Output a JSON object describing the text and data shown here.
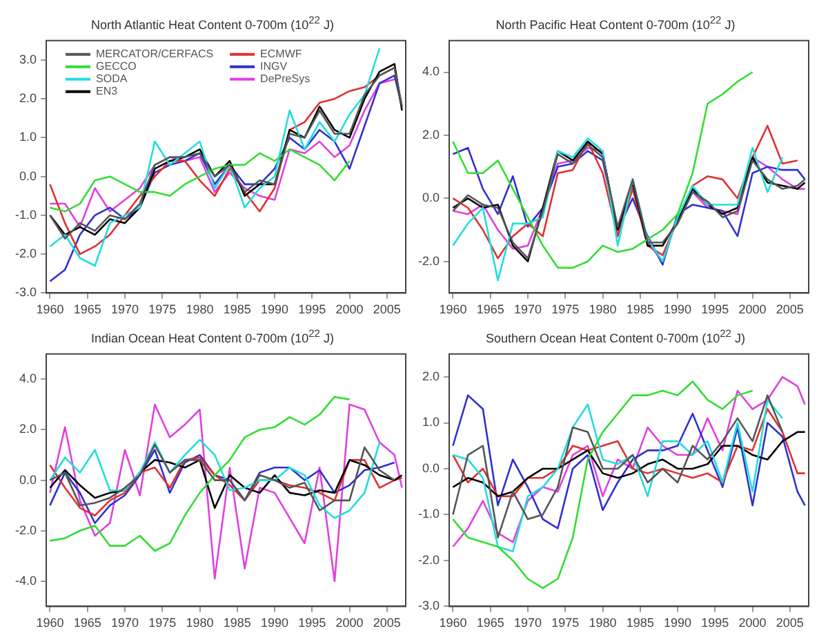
{
  "chart_data": [
    {
      "type": "line",
      "title": "North Atlantic Heat Content 0-700m (10$^{22}$ J)",
      "legend": "top left",
      "x": [
        1960,
        1962,
        1964,
        1966,
        1968,
        1970,
        1972,
        1974,
        1976,
        1978,
        1980,
        1982,
        1984,
        1986,
        1988,
        1990,
        1992,
        1994,
        1996,
        1998,
        2000,
        2002,
        2004,
        2006,
        2007
      ],
      "xlim": [
        1959.5,
        2007.5
      ],
      "xticks": [
        1960,
        1965,
        1970,
        1975,
        1980,
        1985,
        1990,
        1995,
        2000,
        2005
      ],
      "ylim": [
        -3,
        3.5
      ],
      "yticks": [
        {
          "value": -3,
          "label": "-3.0"
        },
        {
          "value": -2,
          "label": "-2.0"
        },
        {
          "value": -1,
          "label": "-1.0"
        },
        {
          "value": 0,
          "label": "0.0"
        },
        {
          "value": 1,
          "label": "1.0"
        },
        {
          "value": 2,
          "label": "2.0"
        },
        {
          "value": 3,
          "label": "3.0"
        }
      ],
      "series": [
        {
          "name": "MERCATOR/CERFACS",
          "color": "#555555",
          "values": [
            -1.0,
            -1.6,
            -1.2,
            -1.4,
            -1.0,
            -1.1,
            -0.7,
            0.3,
            0.5,
            0.5,
            0.6,
            0.0,
            0.3,
            -0.4,
            -0.1,
            -0.2,
            1.1,
            1.0,
            1.7,
            1.1,
            1.1,
            2.1,
            2.6,
            2.8,
            1.8
          ]
        },
        {
          "name": "GECCO",
          "color": "#33dd33",
          "values": [
            -0.8,
            -0.9,
            -0.7,
            -0.1,
            0.0,
            -0.2,
            -0.4,
            -0.4,
            -0.5,
            -0.2,
            0.0,
            0.2,
            0.3,
            0.3,
            0.6,
            0.4,
            0.7,
            0.5,
            0.3,
            -0.1,
            0.4,
            null,
            null,
            null,
            null
          ]
        },
        {
          "name": "SODA",
          "color": "#22dddd",
          "values": [
            -1.8,
            -1.5,
            -2.1,
            -2.3,
            -1.2,
            -1.0,
            -0.8,
            0.9,
            0.3,
            0.6,
            0.9,
            -0.3,
            0.3,
            -0.8,
            -0.3,
            0.0,
            1.7,
            0.7,
            1.4,
            0.9,
            1.6,
            2.1,
            3.3,
            null,
            null
          ]
        },
        {
          "name": "EN3",
          "color": "#000000",
          "values": [
            -1.0,
            -1.5,
            -1.3,
            -1.5,
            -1.1,
            -1.2,
            -0.8,
            0.2,
            0.4,
            0.5,
            0.7,
            0.0,
            0.4,
            -0.5,
            -0.2,
            -0.2,
            1.2,
            1.0,
            1.8,
            1.2,
            1.0,
            2.0,
            2.7,
            2.9,
            1.7
          ]
        },
        {
          "name": "ECMWF",
          "color": "#e03030",
          "values": [
            -0.2,
            -1.2,
            -2.0,
            -1.8,
            -1.5,
            -1.0,
            -0.5,
            0.0,
            0.4,
            0.4,
            -0.1,
            -0.5,
            0.2,
            -0.4,
            -0.9,
            -0.3,
            1.2,
            1.4,
            1.9,
            2.0,
            2.2,
            2.3,
            2.6,
            2.8,
            1.8
          ]
        },
        {
          "name": "INGV",
          "color": "#3030d0",
          "values": [
            -2.7,
            -2.4,
            -1.5,
            -1.0,
            -0.8,
            -1.1,
            -0.8,
            0.1,
            0.3,
            0.4,
            0.6,
            -0.2,
            0.3,
            -0.2,
            -0.2,
            0.2,
            1.0,
            0.7,
            1.2,
            0.9,
            0.2,
            1.3,
            2.4,
            2.6,
            1.8
          ]
        },
        {
          "name": "DePreSys",
          "color": "#e040e0",
          "values": [
            -0.7,
            -0.7,
            -1.3,
            -0.3,
            -0.9,
            -0.6,
            -0.3,
            0.3,
            0.5,
            0.4,
            0.5,
            -0.4,
            0.1,
            -0.3,
            -0.5,
            -0.6,
            0.7,
            0.6,
            0.9,
            0.5,
            0.8,
            1.7,
            2.4,
            2.5,
            null
          ]
        }
      ]
    },
    {
      "type": "line",
      "title": "North Pacific Heat Content 0-700m (10$^{22}$ J)",
      "x": [
        1960,
        1962,
        1964,
        1966,
        1968,
        1970,
        1972,
        1974,
        1976,
        1978,
        1980,
        1982,
        1984,
        1986,
        1988,
        1990,
        1992,
        1994,
        1996,
        1998,
        2000,
        2002,
        2004,
        2006,
        2007
      ],
      "xlim": [
        1959.5,
        2007.5
      ],
      "xticks": [
        1960,
        1965,
        1970,
        1975,
        1980,
        1985,
        1990,
        1995,
        2000,
        2005
      ],
      "ylim": [
        -3,
        5
      ],
      "yticks": [
        {
          "value": -2,
          "label": "-2.0"
        },
        {
          "value": 0,
          "label": "0.0"
        },
        {
          "value": 2,
          "label": "2.0"
        },
        {
          "value": 4,
          "label": "4.0"
        }
      ],
      "series": [
        {
          "color": "#555555",
          "values": [
            -0.4,
            0.1,
            -0.2,
            -0.3,
            -1.4,
            -1.9,
            -0.4,
            1.4,
            1.1,
            1.7,
            1.3,
            -0.9,
            0.6,
            -1.4,
            -1.4,
            -0.8,
            0.2,
            -0.1,
            -0.6,
            -0.4,
            1.2,
            0.6,
            0.3,
            0.4,
            0.6
          ]
        },
        {
          "color": "#33dd33",
          "values": [
            1.8,
            0.8,
            0.8,
            1.2,
            0.3,
            -0.6,
            -1.5,
            -2.2,
            -2.2,
            -2.0,
            -1.5,
            -1.7,
            -1.6,
            -1.3,
            -1.0,
            -0.5,
            0.8,
            3.0,
            3.3,
            3.7,
            4.0,
            null,
            null,
            null,
            null
          ]
        },
        {
          "color": "#22dddd",
          "values": [
            -1.5,
            -0.8,
            -0.3,
            -2.6,
            -0.8,
            -0.8,
            -0.6,
            1.5,
            1.3,
            1.9,
            1.5,
            -1.5,
            0.6,
            -1.3,
            -2.0,
            -0.6,
            0.4,
            -0.2,
            -0.2,
            -0.2,
            1.6,
            0.2,
            1.3,
            null,
            null
          ]
        },
        {
          "color": "#000000",
          "values": [
            -0.3,
            0.0,
            -0.3,
            -0.2,
            -1.5,
            -2.0,
            -0.3,
            1.5,
            1.2,
            1.8,
            1.4,
            -1.0,
            0.5,
            -1.5,
            -1.5,
            -0.7,
            0.3,
            -0.2,
            -0.5,
            -0.3,
            1.3,
            0.5,
            0.4,
            0.3,
            0.5
          ]
        },
        {
          "color": "#e03030",
          "values": [
            0.0,
            -0.3,
            -1.0,
            -1.9,
            -1.2,
            -0.8,
            -1.2,
            0.8,
            0.9,
            1.8,
            0.8,
            -1.2,
            0.3,
            -1.5,
            -1.8,
            -0.7,
            0.4,
            0.7,
            0.6,
            0.0,
            1.3,
            2.3,
            1.1,
            1.2,
            null
          ]
        },
        {
          "color": "#3030d0",
          "values": [
            1.4,
            1.6,
            0.3,
            -0.5,
            0.7,
            -0.9,
            -0.3,
            1.0,
            1.1,
            1.5,
            1.2,
            -1.0,
            0.0,
            -1.2,
            -2.1,
            -0.5,
            -0.2,
            -0.3,
            -0.4,
            -1.2,
            0.8,
            1.0,
            0.9,
            0.9,
            0.6
          ]
        },
        {
          "color": "#e040e0",
          "values": [
            -0.4,
            -0.5,
            -0.2,
            -1.0,
            -1.6,
            -1.5,
            -0.3,
            1.1,
            1.2,
            1.6,
            1.5,
            -1.2,
            0.4,
            -1.4,
            -2.0,
            -0.6,
            0.2,
            -0.3,
            -0.4,
            -0.5,
            1.3,
            1.0,
            0.6,
            0.3,
            0.3
          ]
        }
      ]
    },
    {
      "type": "line",
      "title": "Indian Ocean Heat Content 0-700m (10$^{22}$ J)",
      "x": [
        1960,
        1962,
        1964,
        1966,
        1968,
        1970,
        1972,
        1974,
        1976,
        1978,
        1980,
        1982,
        1984,
        1986,
        1988,
        1990,
        1992,
        1994,
        1996,
        1998,
        2000,
        2002,
        2004,
        2006,
        2007
      ],
      "xlim": [
        1959.5,
        2007.5
      ],
      "xticks": [
        1960,
        1965,
        1970,
        1975,
        1980,
        1985,
        1990,
        1995,
        2000,
        2005
      ],
      "ylim": [
        -5,
        5
      ],
      "yticks": [
        {
          "value": -4,
          "label": "-4.0"
        },
        {
          "value": -2,
          "label": "-2.0"
        },
        {
          "value": 0,
          "label": "0.0"
        },
        {
          "value": 2,
          "label": "2.0"
        },
        {
          "value": 4,
          "label": "4.0"
        }
      ],
      "series": [
        {
          "color": "#555555",
          "values": [
            0.0,
            0.3,
            -1.0,
            -0.9,
            -0.7,
            -0.3,
            0.2,
            1.4,
            0.3,
            0.8,
            0.8,
            0.0,
            0.0,
            -0.8,
            0.2,
            0.0,
            -0.3,
            -0.1,
            -1.2,
            -0.8,
            -0.8,
            1.3,
            0.4,
            0.0,
            null
          ]
        },
        {
          "color": "#33dd33",
          "values": [
            -2.4,
            -2.3,
            -2.0,
            -1.8,
            -2.6,
            -2.6,
            -2.2,
            -2.8,
            -2.5,
            -1.4,
            -0.5,
            0.2,
            0.8,
            1.7,
            2.0,
            2.1,
            2.5,
            2.2,
            2.6,
            3.3,
            3.2,
            null,
            null,
            null,
            null
          ]
        },
        {
          "color": "#22dddd",
          "values": [
            0.0,
            0.9,
            0.3,
            1.2,
            -0.4,
            -0.4,
            0.3,
            1.5,
            0.3,
            1.0,
            1.6,
            1.0,
            -0.4,
            -0.3,
            0.0,
            0.0,
            0.5,
            0.2,
            -1.0,
            -1.5,
            -1.2,
            -0.5,
            1.5,
            null,
            null
          ]
        },
        {
          "color": "#000000",
          "values": [
            -0.3,
            0.4,
            -0.2,
            -0.7,
            -0.5,
            -0.4,
            0.3,
            0.8,
            0.7,
            0.5,
            0.8,
            -1.1,
            0.2,
            -0.3,
            -0.5,
            0.2,
            -0.5,
            -0.6,
            -0.4,
            -0.5,
            0.8,
            0.6,
            0.2,
            0.0,
            0.2
          ]
        },
        {
          "color": "#e03030",
          "values": [
            0.6,
            -0.3,
            -1.1,
            -1.4,
            -0.8,
            -0.5,
            0.3,
            0.5,
            -0.3,
            0.8,
            0.9,
            0.2,
            -0.2,
            -0.8,
            0.0,
            0.0,
            -0.2,
            -0.3,
            -0.5,
            -0.8,
            0.8,
            0.8,
            -0.3,
            0.0,
            0.1
          ]
        },
        {
          "color": "#3030d0",
          "values": [
            -1.0,
            0.3,
            -0.5,
            -1.7,
            -1.0,
            -0.6,
            0.2,
            1.2,
            -0.5,
            0.7,
            1.0,
            0.2,
            0.0,
            -0.8,
            0.3,
            0.5,
            0.5,
            0.0,
            0.4,
            -0.5,
            -0.2,
            0.4,
            0.5,
            0.7,
            null
          ]
        },
        {
          "color": "#e040e0",
          "values": [
            -0.5,
            2.1,
            -0.8,
            -2.2,
            -1.7,
            1.2,
            -0.6,
            3.0,
            1.7,
            2.2,
            2.8,
            -3.9,
            0.5,
            -3.5,
            -0.3,
            -0.5,
            -1.5,
            -2.5,
            0.5,
            -4.0,
            3.0,
            2.8,
            1.5,
            1.0,
            -0.3
          ]
        }
      ]
    },
    {
      "type": "line",
      "title": "Southern Ocean Heat Content 0-700m (10$^{22}$ J)",
      "x": [
        1960,
        1962,
        1964,
        1966,
        1968,
        1970,
        1972,
        1974,
        1976,
        1978,
        1980,
        1982,
        1984,
        1986,
        1988,
        1990,
        1992,
        1994,
        1996,
        1998,
        2000,
        2002,
        2004,
        2006,
        2007
      ],
      "xlim": [
        1959.5,
        2007.5
      ],
      "xticks": [
        1960,
        1965,
        1970,
        1975,
        1980,
        1985,
        1990,
        1995,
        2000,
        2005
      ],
      "ylim": [
        -3,
        2.5
      ],
      "yticks": [
        {
          "value": -3,
          "label": "-3.0"
        },
        {
          "value": -2,
          "label": "-2.0"
        },
        {
          "value": -1,
          "label": "-1.0"
        },
        {
          "value": 0,
          "label": "0.0"
        },
        {
          "value": 1,
          "label": "1.0"
        },
        {
          "value": 2,
          "label": "2.0"
        }
      ],
      "series": [
        {
          "color": "#555555",
          "values": [
            -1.0,
            0.3,
            0.5,
            -1.5,
            -0.5,
            -1.1,
            -1.0,
            -0.4,
            0.9,
            0.8,
            0.0,
            0.0,
            0.3,
            -0.3,
            0.0,
            -0.3,
            0.5,
            0.2,
            0.6,
            1.1,
            0.6,
            1.6,
            0.8,
            null,
            null
          ]
        },
        {
          "color": "#33dd33",
          "values": [
            -1.1,
            -1.5,
            -1.6,
            -1.7,
            -2.0,
            -2.4,
            -2.6,
            -2.4,
            -1.5,
            0.2,
            0.8,
            1.2,
            1.6,
            1.6,
            1.7,
            1.6,
            1.9,
            1.5,
            1.3,
            1.6,
            1.7,
            null,
            null,
            null,
            null
          ]
        },
        {
          "color": "#22dddd",
          "values": [
            0.3,
            0.2,
            -0.2,
            -1.7,
            -1.8,
            -0.6,
            -0.4,
            0.0,
            0.9,
            1.4,
            0.2,
            0.1,
            0.3,
            -0.6,
            0.6,
            0.6,
            0.3,
            0.6,
            -0.3,
            1.0,
            -0.5,
            1.5,
            1.1,
            null,
            null
          ]
        },
        {
          "color": "#000000",
          "values": [
            -0.4,
            -0.2,
            -0.3,
            -0.6,
            -0.5,
            -0.2,
            0.0,
            0.0,
            0.2,
            0.4,
            -0.1,
            -0.2,
            -0.1,
            0.1,
            0.2,
            0.0,
            0.0,
            0.1,
            0.5,
            0.5,
            0.3,
            0.2,
            0.6,
            0.8,
            0.8
          ]
        },
        {
          "color": "#e03030",
          "values": [
            0.3,
            -0.3,
            0.0,
            -0.6,
            -0.6,
            -0.2,
            -0.2,
            0.0,
            0.5,
            0.4,
            0.5,
            0.6,
            0.0,
            -0.1,
            0.0,
            -0.1,
            -0.2,
            -0.1,
            -0.3,
            0.5,
            0.4,
            1.3,
            0.8,
            -0.1,
            -0.1
          ]
        },
        {
          "color": "#3030d0",
          "values": [
            0.5,
            1.6,
            1.3,
            -0.8,
            0.2,
            -0.4,
            -1.1,
            -1.3,
            0.0,
            0.3,
            -0.9,
            -0.3,
            0.2,
            0.4,
            0.4,
            0.5,
            1.2,
            0.4,
            -0.4,
            0.9,
            -0.8,
            1.0,
            0.7,
            -0.5,
            -0.8
          ]
        },
        {
          "color": "#e040e0",
          "values": [
            -1.7,
            -1.3,
            -0.7,
            -1.4,
            -1.6,
            -0.7,
            -0.4,
            -0.5,
            0.3,
            0.5,
            -0.6,
            0.2,
            0.0,
            0.9,
            0.5,
            0.3,
            0.3,
            1.1,
            0.4,
            1.7,
            1.3,
            1.5,
            2.0,
            1.8,
            1.4
          ]
        }
      ]
    }
  ]
}
